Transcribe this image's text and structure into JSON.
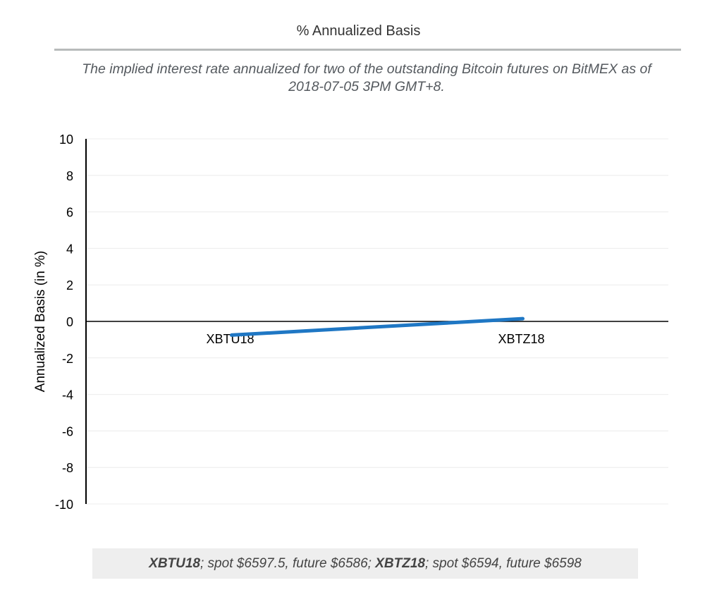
{
  "title": "% Annualized Basis",
  "subtitle": "The implied interest rate annualized for two of the outstanding Bitcoin futures on BitMEX as of 2018-07-05 3PM GMT+8.",
  "chart_data": {
    "type": "line",
    "categories": [
      "XBTU18",
      "XBTZ18"
    ],
    "series": [
      {
        "values": [
          -0.75,
          0.15
        ],
        "color": "#1f77c4"
      }
    ],
    "xlabel": "",
    "ylabel": "Annualized Basis (in %)",
    "ylim": [
      -10,
      10
    ],
    "yticks": [
      "10",
      "8",
      "6",
      "4",
      "2",
      "0",
      "-2",
      "-4",
      "-6",
      "-8",
      "-10"
    ],
    "grid": true,
    "legend": "none"
  },
  "footnote": {
    "a_name": "XBTU18",
    "a_text": "; spot $6597.5, future $6586; ",
    "b_name": "XBTZ18",
    "b_text": "; spot $6594, future $6598"
  }
}
